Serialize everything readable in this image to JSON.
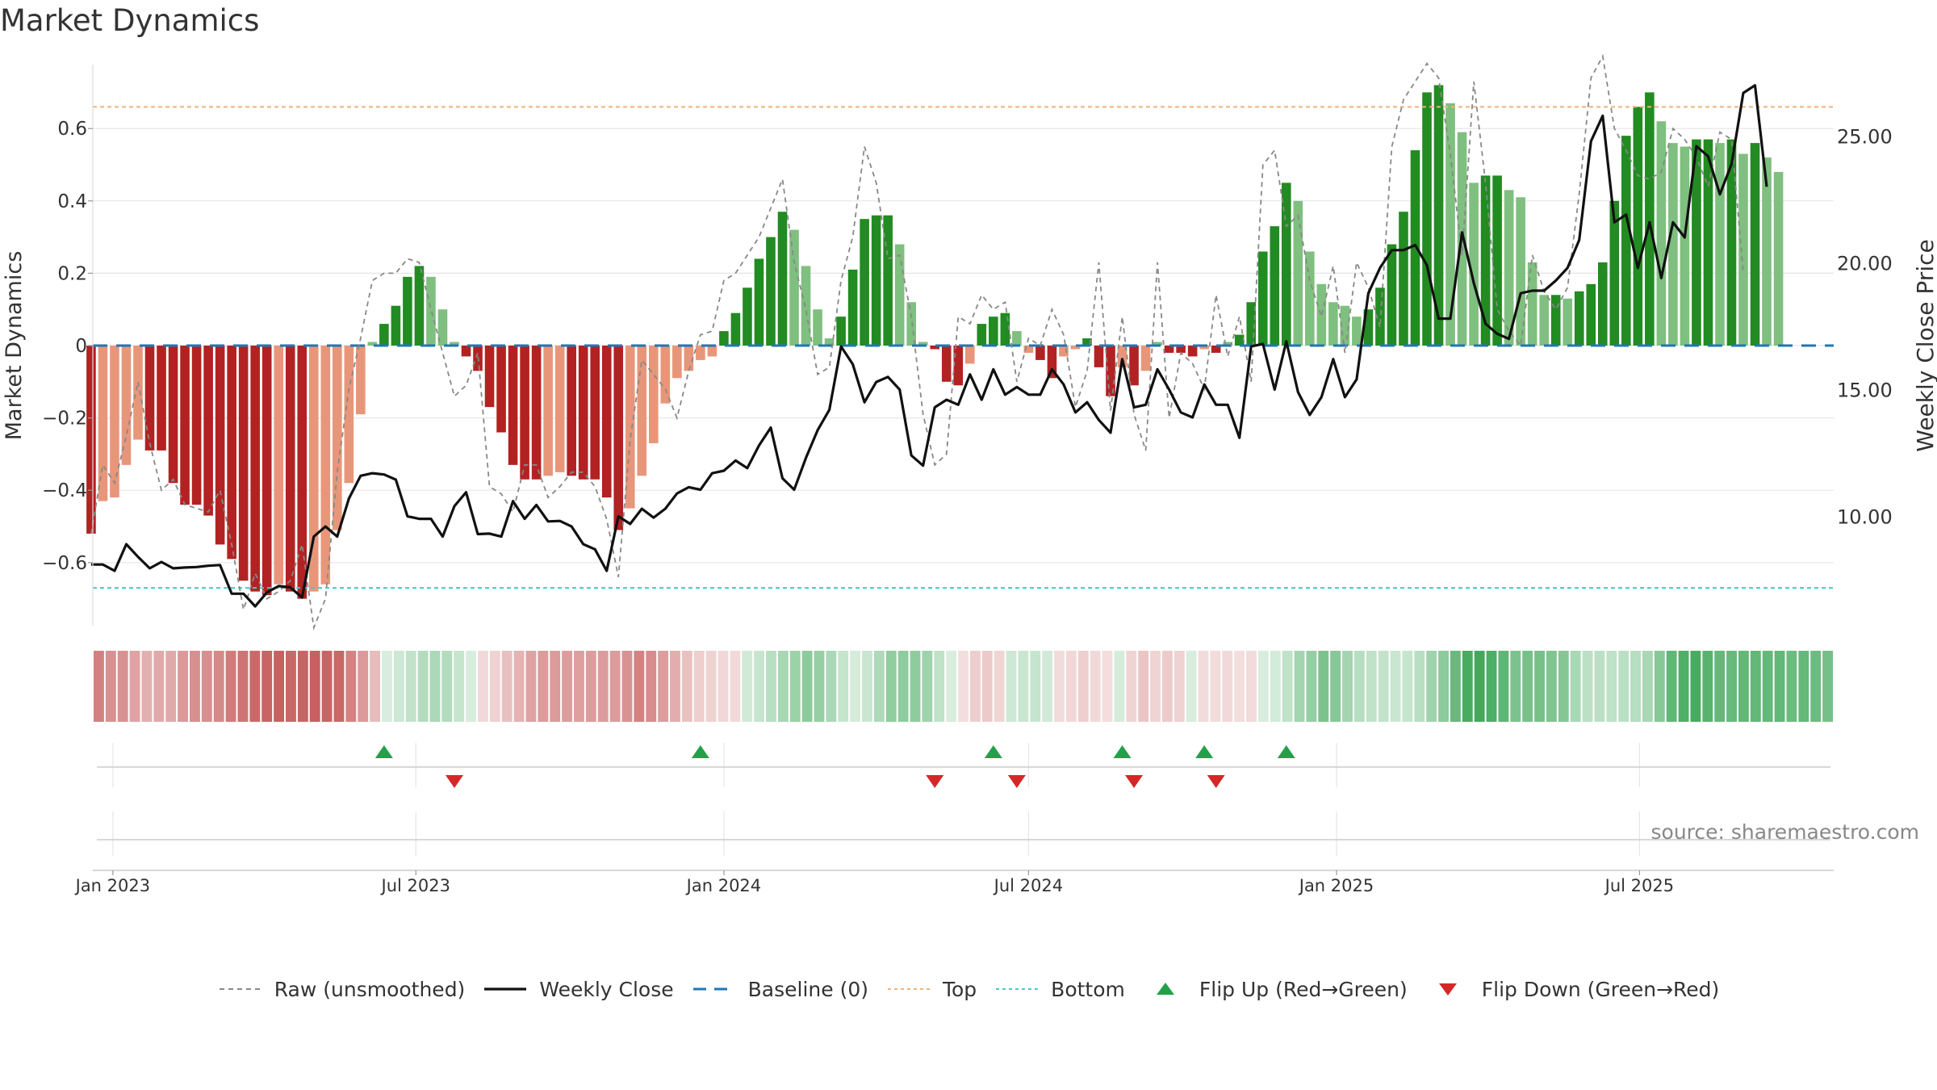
{
  "chart_data": {
    "title": "Market Dynamics",
    "type": "bar+line",
    "ylabel_left": "Market Dynamics",
    "ylabel_right": "Weekly Close Price",
    "y_left_range": [
      -0.77,
      0.77
    ],
    "y_left_ticks": [
      0.6,
      0.4,
      0.2,
      0,
      -0.2,
      -0.4,
      -0.6
    ],
    "y_left_tick_labels": [
      "0.6",
      "0.4",
      "0.2",
      "0",
      "−0.2",
      "−0.4",
      "−0.6"
    ],
    "y_right_range": [
      5.6,
      28.2
    ],
    "y_right_ticks": [
      25,
      20,
      15,
      10
    ],
    "y_right_tick_labels": [
      "25.00",
      "20.00",
      "15.00",
      "10.00"
    ],
    "x_ticks": [
      {
        "label": "Jan 2023",
        "date": "2023-01-01"
      },
      {
        "label": "Jul 2023",
        "date": "2023-07-01"
      },
      {
        "label": "Jan 2024",
        "date": "2024-01-01"
      },
      {
        "label": "Jul 2024",
        "date": "2024-07-01"
      },
      {
        "label": "Jan 2025",
        "date": "2025-01-01"
      },
      {
        "label": "Jul 2025",
        "date": "2025-07-01"
      }
    ],
    "x_range": [
      "2022-12-20",
      "2025-10-25"
    ],
    "start_week": "2022-12-19",
    "top_line": 0.66,
    "bottom_line": -0.67,
    "baseline": 0,
    "grid": true,
    "dynamics": [
      -0.52,
      -0.43,
      -0.42,
      -0.33,
      -0.26,
      -0.29,
      -0.29,
      -0.38,
      -0.44,
      -0.44,
      -0.47,
      -0.55,
      -0.59,
      -0.65,
      -0.68,
      -0.69,
      -0.66,
      -0.68,
      -0.7,
      -0.68,
      -0.66,
      -0.51,
      -0.38,
      -0.19,
      0.01,
      0.06,
      0.11,
      0.19,
      0.22,
      0.19,
      0.1,
      0.01,
      -0.03,
      -0.07,
      -0.17,
      -0.24,
      -0.33,
      -0.37,
      -0.37,
      -0.36,
      -0.35,
      -0.36,
      -0.37,
      -0.37,
      -0.42,
      -0.51,
      -0.45,
      -0.36,
      -0.27,
      -0.16,
      -0.09,
      -0.07,
      -0.04,
      -0.03,
      0.04,
      0.09,
      0.16,
      0.24,
      0.3,
      0.37,
      0.32,
      0.22,
      0.1,
      0.02,
      0.08,
      0.21,
      0.35,
      0.36,
      0.36,
      0.28,
      0.12,
      0.01,
      -0.01,
      -0.1,
      -0.11,
      -0.05,
      0.06,
      0.08,
      0.09,
      0.04,
      -0.02,
      -0.04,
      -0.09,
      -0.03,
      -0.01,
      0.02,
      -0.06,
      -0.14,
      -0.06,
      -0.11,
      -0.07,
      0.01,
      -0.02,
      -0.02,
      -0.03,
      -0.01,
      -0.02,
      0.01,
      0.03,
      0.12,
      0.26,
      0.33,
      0.45,
      0.4,
      0.26,
      0.17,
      0.12,
      0.11,
      0.08,
      0.1,
      0.16,
      0.28,
      0.37,
      0.54,
      0.7,
      0.72,
      0.67,
      0.59,
      0.45,
      0.47,
      0.47,
      0.43,
      0.41,
      0.23,
      0.14,
      0.14,
      0.13,
      0.15,
      0.17,
      0.23,
      0.4,
      0.58,
      0.66,
      0.7,
      0.62,
      0.56,
      0.55,
      0.57,
      0.57,
      0.56,
      0.57,
      0.53,
      0.56,
      0.52,
      0.48
    ],
    "raw": [
      -0.52,
      -0.33,
      -0.38,
      -0.25,
      -0.1,
      -0.27,
      -0.4,
      -0.37,
      -0.44,
      -0.45,
      -0.46,
      -0.4,
      -0.55,
      -0.73,
      -0.63,
      -0.7,
      -0.68,
      -0.65,
      -0.55,
      -0.78,
      -0.7,
      -0.35,
      -0.12,
      0.02,
      0.18,
      0.2,
      0.2,
      0.24,
      0.23,
      0.1,
      -0.02,
      -0.14,
      -0.11,
      -0.02,
      -0.39,
      -0.41,
      -0.46,
      -0.33,
      -0.33,
      -0.42,
      -0.39,
      -0.35,
      -0.35,
      -0.39,
      -0.48,
      -0.64,
      -0.26,
      -0.04,
      -0.08,
      -0.12,
      -0.2,
      -0.07,
      0.03,
      0.04,
      0.18,
      0.2,
      0.25,
      0.3,
      0.38,
      0.46,
      0.23,
      0.1,
      -0.08,
      -0.06,
      0.18,
      0.3,
      0.55,
      0.45,
      0.24,
      0.25,
      0.08,
      -0.19,
      -0.33,
      -0.3,
      0.08,
      0.06,
      0.14,
      0.1,
      0.12,
      -0.1,
      0.02,
      0.0,
      0.1,
      0.03,
      -0.17,
      -0.07,
      0.23,
      -0.18,
      0.08,
      -0.19,
      -0.29,
      0.23,
      -0.2,
      -0.02,
      -0.05,
      -0.12,
      0.14,
      -0.03,
      0.08,
      -0.1,
      0.5,
      0.54,
      0.33,
      0.36,
      0.18,
      0.08,
      0.22,
      -0.02,
      0.23,
      0.16,
      0.05,
      0.55,
      0.68,
      0.73,
      0.78,
      0.74,
      0.53,
      0.25,
      0.73,
      0.45,
      0.1,
      0.04,
      0.0,
      0.25,
      0.15,
      0.1,
      0.16,
      0.42,
      0.74,
      0.8,
      0.6,
      0.54,
      0.47,
      0.46,
      0.48,
      0.6,
      0.57,
      0.52,
      0.44,
      0.59,
      0.57,
      0.2
    ],
    "weekly_close": [
      8.1,
      8.1,
      7.85,
      8.9,
      8.4,
      7.95,
      8.2,
      7.95,
      7.98,
      8.0,
      8.05,
      8.08,
      6.95,
      6.95,
      6.45,
      7.0,
      7.25,
      7.2,
      6.8,
      9.2,
      9.6,
      9.2,
      10.7,
      11.6,
      11.7,
      11.65,
      11.45,
      10.0,
      9.9,
      9.9,
      9.2,
      10.4,
      10.95,
      9.3,
      9.32,
      9.2,
      10.6,
      9.9,
      10.45,
      9.8,
      9.82,
      9.6,
      8.9,
      8.7,
      7.85,
      10.0,
      9.7,
      10.3,
      9.95,
      10.3,
      10.9,
      11.15,
      11.05,
      11.7,
      11.8,
      12.2,
      11.9,
      12.8,
      13.5,
      11.5,
      11.05,
      12.3,
      13.4,
      14.2,
      16.7,
      16.0,
      14.5,
      15.3,
      15.5,
      15.0,
      12.4,
      12.0,
      14.3,
      14.6,
      14.4,
      15.6,
      14.6,
      15.8,
      14.8,
      15.1,
      14.8,
      14.8,
      15.8,
      15.2,
      14.1,
      14.5,
      13.8,
      13.3,
      16.2,
      14.3,
      14.4,
      15.8,
      15.0,
      14.1,
      13.9,
      15.2,
      14.4,
      14.4,
      13.1,
      16.7,
      16.8,
      15.0,
      16.9,
      14.9,
      14.0,
      14.7,
      16.2,
      14.7,
      15.4,
      18.8,
      19.8,
      20.5,
      20.5,
      20.7,
      19.9,
      17.8,
      17.8,
      21.2,
      19.2,
      17.6,
      17.2,
      17.0,
      18.8,
      18.9,
      18.9,
      19.3,
      19.8,
      20.9,
      24.8,
      25.8,
      21.6,
      21.9,
      19.8,
      21.6,
      19.4,
      21.6,
      21.0,
      24.6,
      24.2,
      22.7,
      23.9,
      26.7,
      27.0,
      23.0
    ],
    "flip_up_dates": [
      "2023-06-12",
      "2023-12-18",
      "2024-06-10",
      "2024-08-26",
      "2024-10-14",
      "2024-12-02"
    ],
    "flip_down_dates": [
      "2023-07-24",
      "2024-05-06",
      "2024-06-24",
      "2024-09-02",
      "2024-10-21"
    ],
    "colors": {
      "strong_red": "#b22222",
      "weak_red": "#e8967a",
      "strong_green": "#228b22",
      "weak_green": "#7fbf7f",
      "raw": "#888888",
      "close": "#111111",
      "baseline": "#1f77b4",
      "top": "#f0b27a",
      "bottom": "#48c9c9",
      "flip_up": "#23a04a",
      "flip_down": "#d62728"
    }
  },
  "title": "Market Dynamics",
  "source": "source: sharemaestro.com",
  "legend": [
    {
      "label": "Raw (unsmoothed)",
      "kind": "dash",
      "color": "#888888"
    },
    {
      "label": "Weekly Close",
      "kind": "line",
      "color": "#111111"
    },
    {
      "label": "Baseline (0)",
      "kind": "longdash",
      "color": "#1f77b4"
    },
    {
      "label": "Top",
      "kind": "dot",
      "color": "#f0b27a"
    },
    {
      "label": "Bottom",
      "kind": "dot",
      "color": "#48c9c9"
    },
    {
      "label": "Flip Up (Red→Green)",
      "kind": "tri-up",
      "color": "#23a04a"
    },
    {
      "label": "Flip Down (Green→Red)",
      "kind": "tri-down",
      "color": "#d62728"
    }
  ]
}
